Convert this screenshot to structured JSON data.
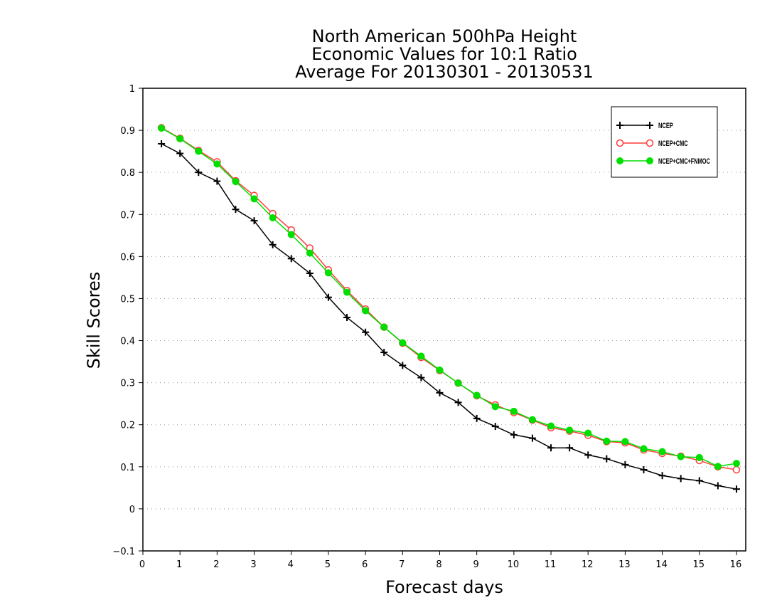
{
  "chart_data": {
    "type": "line",
    "title": [
      "North American 500hPa Height",
      "Economic Values for 10:1 Ratio",
      "Average For 20130301 - 20130531"
    ],
    "xlabel": "Forecast days",
    "ylabel": "Skill Scores",
    "xlim": [
      0,
      16.25
    ],
    "ylim": [
      -0.1,
      1
    ],
    "xticks": [
      0,
      1,
      2,
      3,
      4,
      5,
      6,
      7,
      8,
      9,
      10,
      11,
      12,
      13,
      14,
      15,
      16
    ],
    "yticks": [
      -0.1,
      0,
      0.1,
      0.2,
      0.3,
      0.4,
      0.5,
      0.6,
      0.7,
      0.8,
      0.9,
      1
    ],
    "ytick_labels": [
      "−0.1",
      "0",
      "0.1",
      "0.2",
      "0.3",
      "0.4",
      "0.5",
      "0.6",
      "0.7",
      "0.8",
      "0.9",
      "1"
    ],
    "grid": true,
    "legend_position": "top-right",
    "x": [
      0.5,
      1,
      1.5,
      2,
      2.5,
      3,
      3.5,
      4,
      4.5,
      5,
      5.5,
      6,
      6.5,
      7,
      7.5,
      8,
      8.5,
      9,
      9.5,
      10,
      10.5,
      11,
      11.5,
      12,
      12.5,
      13,
      13.5,
      14,
      14.5,
      15,
      15.5,
      16
    ],
    "series": [
      {
        "name": "NCEP",
        "color": "#000000",
        "marker": "plus",
        "values": [
          0.868,
          0.845,
          0.8,
          0.779,
          0.712,
          0.685,
          0.628,
          0.595,
          0.56,
          0.503,
          0.455,
          0.42,
          0.372,
          0.341,
          0.312,
          0.276,
          0.253,
          0.215,
          0.196,
          0.176,
          0.168,
          0.145,
          0.145,
          0.128,
          0.119,
          0.105,
          0.093,
          0.079,
          0.072,
          0.067,
          0.055,
          0.047
        ]
      },
      {
        "name": "NCEP+CMC",
        "color": "#ff3b3b",
        "marker": "open-circle",
        "values": [
          0.906,
          0.881,
          0.852,
          0.825,
          0.78,
          0.745,
          0.702,
          0.663,
          0.62,
          0.568,
          0.519,
          0.475,
          0.432,
          0.394,
          0.36,
          0.329,
          0.299,
          0.269,
          0.247,
          0.229,
          0.211,
          0.193,
          0.185,
          0.175,
          0.16,
          0.157,
          0.14,
          0.132,
          0.125,
          0.115,
          0.1,
          0.093
        ]
      },
      {
        "name": "NCEP+CMC+FNMOC",
        "color": "#00e000",
        "marker": "filled-circle",
        "values": [
          0.905,
          0.88,
          0.85,
          0.82,
          0.778,
          0.737,
          0.692,
          0.652,
          0.608,
          0.561,
          0.515,
          0.471,
          0.432,
          0.395,
          0.363,
          0.33,
          0.299,
          0.27,
          0.243,
          0.232,
          0.212,
          0.197,
          0.187,
          0.18,
          0.161,
          0.16,
          0.143,
          0.136,
          0.124,
          0.122,
          0.101,
          0.108
        ]
      }
    ]
  }
}
